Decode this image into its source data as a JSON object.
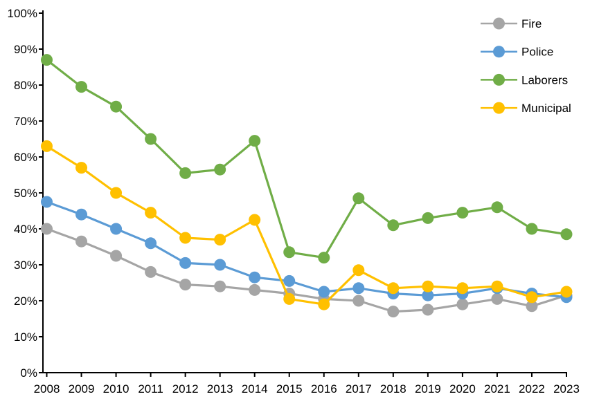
{
  "chart_data": {
    "type": "line",
    "title": "",
    "xlabel": "",
    "ylabel": "",
    "x": [
      2008,
      2009,
      2010,
      2011,
      2012,
      2013,
      2014,
      2015,
      2016,
      2017,
      2018,
      2019,
      2020,
      2021,
      2022,
      2023
    ],
    "series": [
      {
        "name": "Fire",
        "color": "#A5A5A5",
        "values": [
          40,
          36.5,
          32.5,
          28,
          24.5,
          24,
          23,
          22,
          20.5,
          20,
          17,
          17.5,
          19,
          20.5,
          18.5,
          21.5
        ]
      },
      {
        "name": "Police",
        "color": "#5B9BD5",
        "values": [
          47.5,
          44,
          40,
          36,
          30.5,
          30,
          26.5,
          25.5,
          22.5,
          23.5,
          22,
          21.5,
          22,
          23.5,
          22,
          21
        ]
      },
      {
        "name": "Laborers",
        "color": "#70AD47",
        "values": [
          87,
          79.5,
          74,
          65,
          55.5,
          56.5,
          64.5,
          33.5,
          32,
          48.5,
          41,
          43,
          44.5,
          46,
          40,
          38.5
        ]
      },
      {
        "name": "Municipal",
        "color": "#FFC000",
        "values": [
          63,
          57,
          50,
          44.5,
          37.5,
          37,
          42.5,
          20.5,
          19,
          28.5,
          23.5,
          24,
          23.5,
          24,
          21,
          22.5
        ]
      }
    ],
    "ylim": [
      0,
      100
    ],
    "ytick_step": 10,
    "ytick_suffix": "%",
    "grid": false,
    "legend_position": "top-right",
    "axis_color": "#000000",
    "background_color": "#FFFFFF",
    "marker": "circle"
  }
}
